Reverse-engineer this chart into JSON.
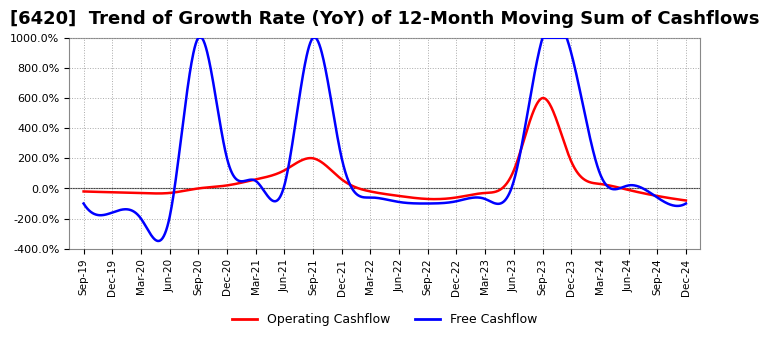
{
  "title": "[6420]  Trend of Growth Rate (YoY) of 12-Month Moving Sum of Cashflows",
  "title_fontsize": 13,
  "ylabel": "",
  "ylim": [
    -400,
    1000
  ],
  "yticks": [
    -400,
    -200,
    0,
    200,
    400,
    600,
    800,
    1000
  ],
  "background_color": "#ffffff",
  "plot_bg_color": "#ffffff",
  "grid_color": "#aaaaaa",
  "legend_labels": [
    "Operating Cashflow",
    "Free Cashflow"
  ],
  "legend_colors": [
    "#ff0000",
    "#0000ff"
  ],
  "x_labels": [
    "Sep-19",
    "Dec-19",
    "Mar-20",
    "Jun-20",
    "Sep-20",
    "Dec-20",
    "Mar-21",
    "Jun-21",
    "Sep-21",
    "Dec-21",
    "Mar-22",
    "Jun-22",
    "Sep-22",
    "Dec-22",
    "Mar-23",
    "Jun-23",
    "Sep-23",
    "Dec-23",
    "Mar-24",
    "Jun-24",
    "Sep-24",
    "Dec-24"
  ],
  "operating_cf": [
    -20,
    -25,
    -30,
    -30,
    0,
    20,
    60,
    120,
    200,
    60,
    -20,
    -50,
    -70,
    -60,
    -30,
    120,
    600,
    180,
    30,
    -10,
    -50,
    -80
  ],
  "free_cf": [
    -100,
    -160,
    -200,
    -190,
    1000,
    200,
    50,
    20,
    1000,
    200,
    -60,
    -90,
    -100,
    -85,
    -70,
    50,
    1000,
    900,
    100,
    20,
    -60,
    -100
  ]
}
